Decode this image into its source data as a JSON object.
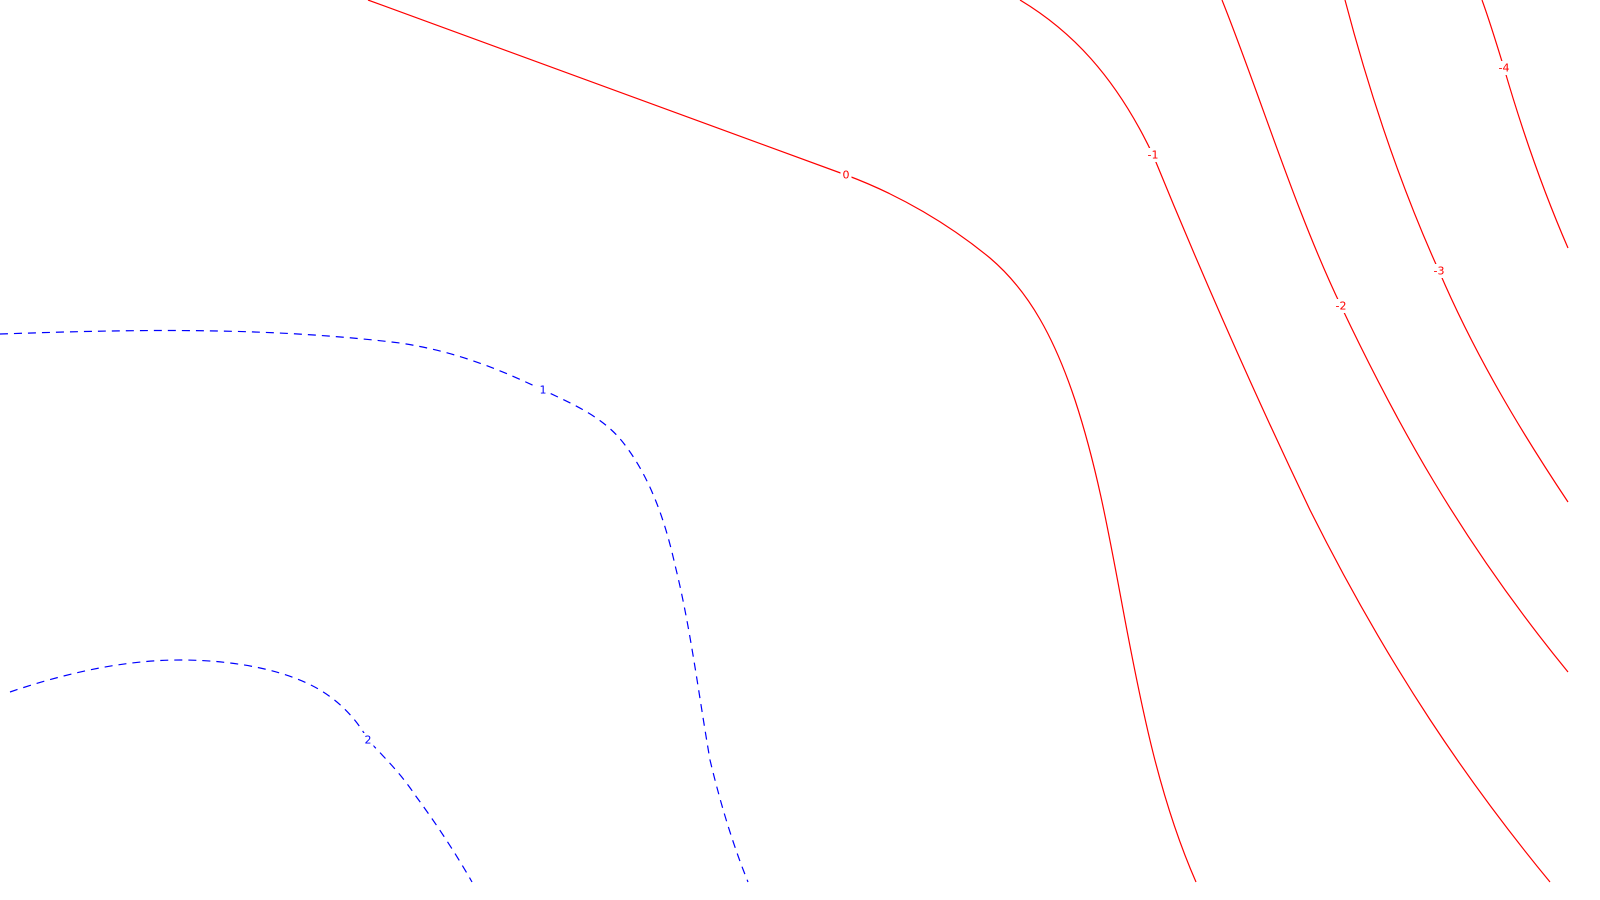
{
  "chart_data": {
    "type": "contour",
    "title": "",
    "xlabel": "",
    "ylabel": "",
    "grid": false,
    "legend": "none",
    "colors": {
      "positive": "#0000ff",
      "zero_and_negative": "#ff0000"
    },
    "levels": [
      {
        "value": 2,
        "label": "2",
        "style": "dashed",
        "color": "#0000ff"
      },
      {
        "value": 1,
        "label": "1",
        "style": "dashed",
        "color": "#0000ff"
      },
      {
        "value": 0,
        "label": "0",
        "style": "solid",
        "color": "#ff0000"
      },
      {
        "value": -1,
        "label": "-1",
        "style": "solid",
        "color": "#ff0000"
      },
      {
        "value": -2,
        "label": "-2",
        "style": "solid",
        "color": "#ff0000"
      },
      {
        "value": -3,
        "label": "-3",
        "style": "solid",
        "color": "#ff0000"
      },
      {
        "value": -4,
        "label": "-4",
        "style": "solid",
        "color": "#ff0000"
      }
    ]
  }
}
